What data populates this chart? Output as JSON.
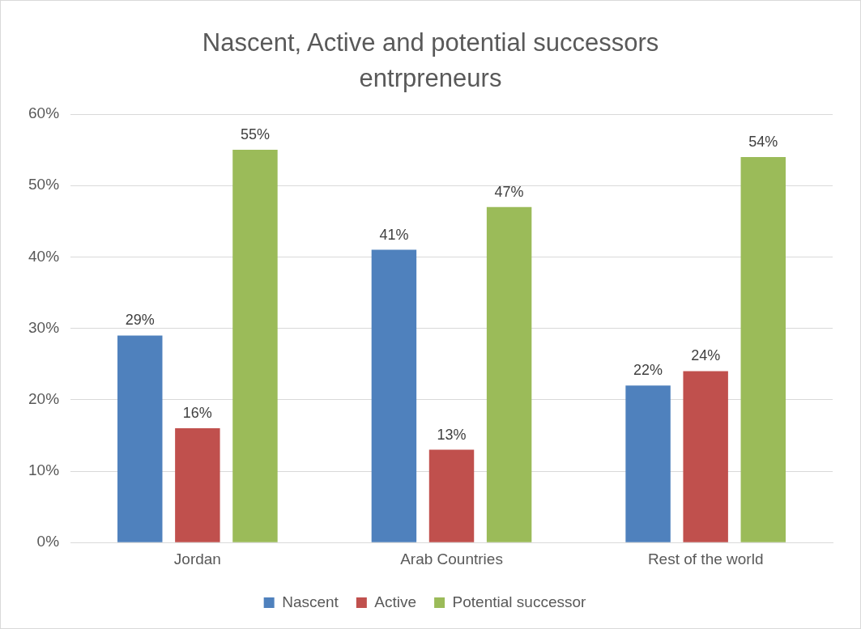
{
  "chart_data": {
    "type": "bar",
    "title": "Nascent, Active and potential successors entrpreneurs",
    "categories": [
      "Jordan",
      "Arab Countries",
      "Rest of the world"
    ],
    "series": [
      {
        "name": "Nascent",
        "color": "#4f81bd",
        "values": [
          29,
          41,
          22
        ],
        "value_labels": [
          "29%",
          "41%",
          "22%"
        ]
      },
      {
        "name": "Active",
        "color": "#c0504d",
        "values": [
          16,
          13,
          24
        ],
        "value_labels": [
          "16%",
          "13%",
          "24%"
        ]
      },
      {
        "name": "Potential successor",
        "color": "#9bbb59",
        "values": [
          55,
          47,
          54
        ],
        "value_labels": [
          "55%",
          "47%",
          "54%"
        ]
      }
    ],
    "ylim": [
      0,
      60
    ],
    "yticks": [
      {
        "value": 0,
        "label": "0%"
      },
      {
        "value": 10,
        "label": "10%"
      },
      {
        "value": 20,
        "label": "20%"
      },
      {
        "value": 30,
        "label": "30%"
      },
      {
        "value": 40,
        "label": "40%"
      },
      {
        "value": 50,
        "label": "50%"
      },
      {
        "value": 60,
        "label": "60%"
      }
    ],
    "grid": "y",
    "legend": "bottom"
  }
}
